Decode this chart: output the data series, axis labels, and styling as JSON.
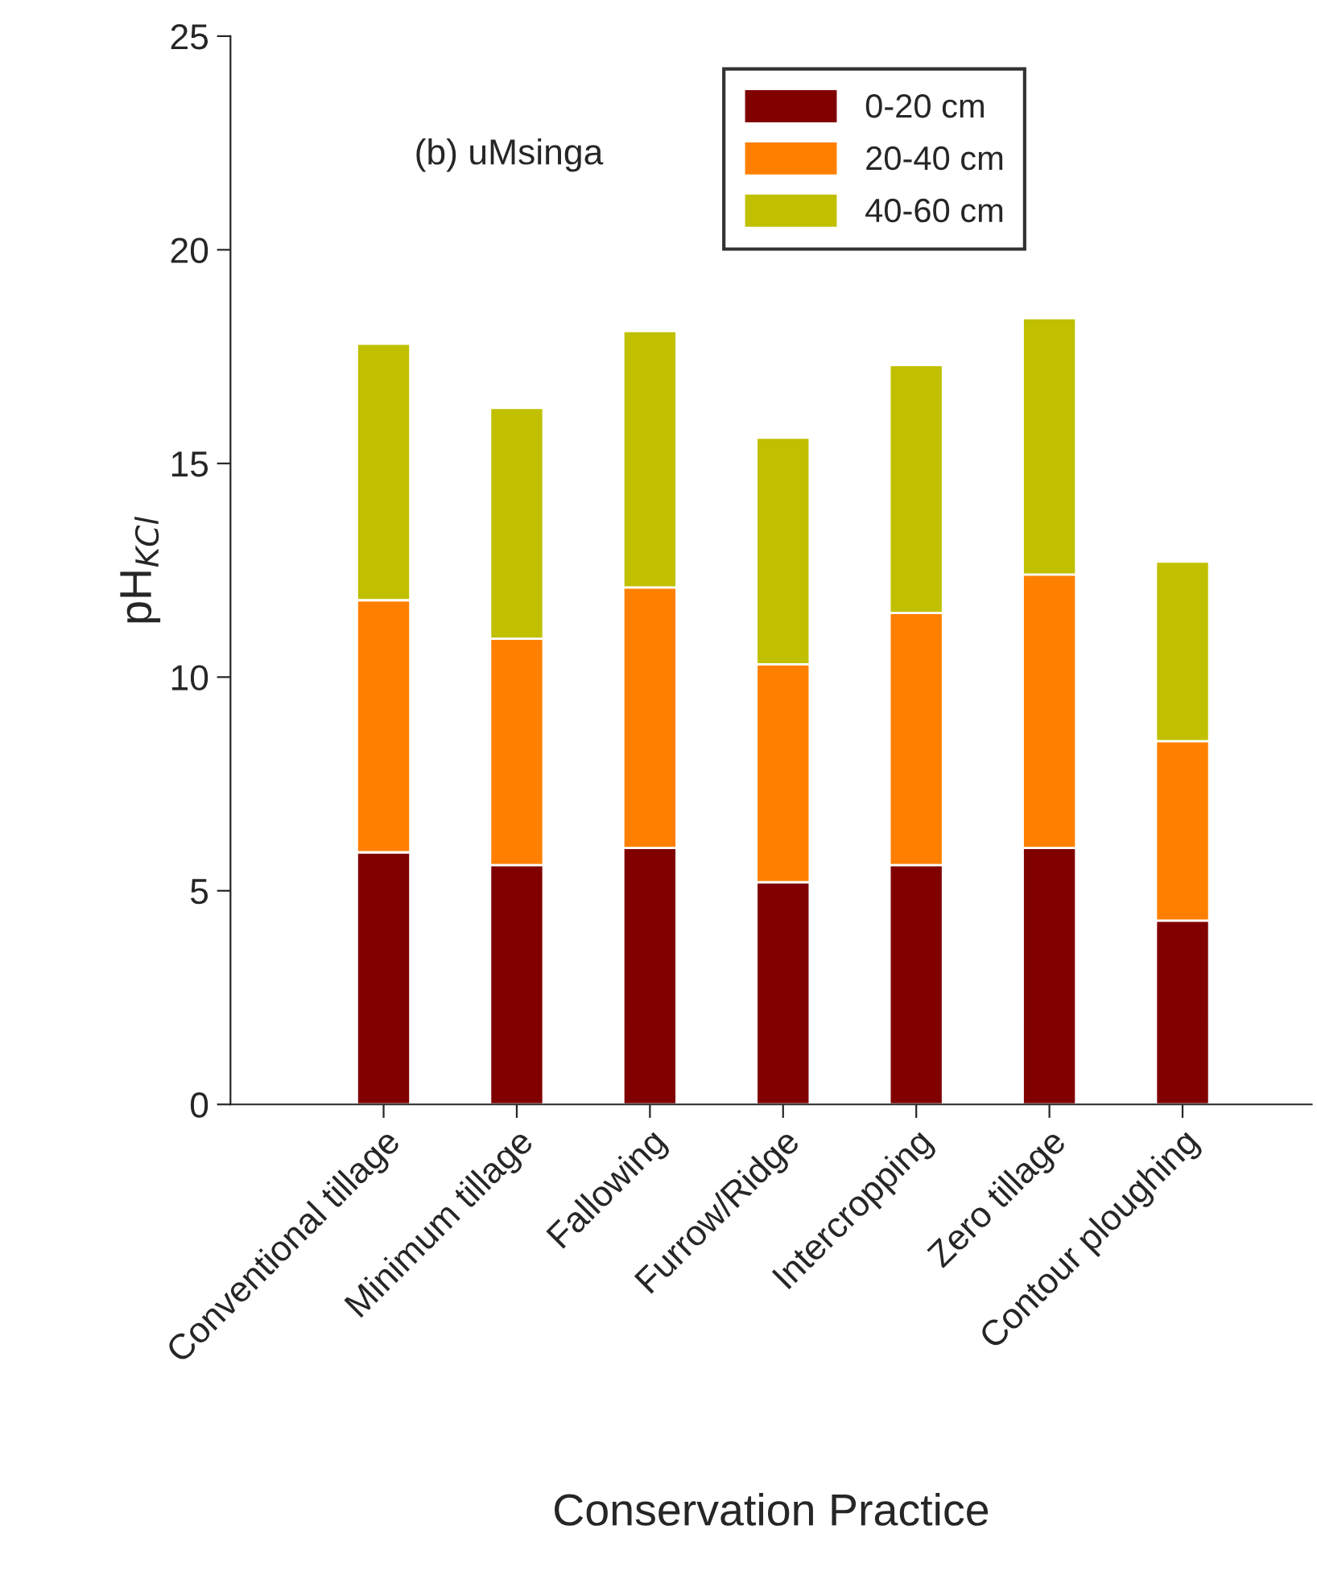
{
  "chart_data": {
    "type": "bar",
    "stacked": true,
    "xlabel": "Conservation Practice",
    "ylabel": "pH$_{KCl}$",
    "categories": [
      "Conventional tillage",
      "Minimum tillage",
      "Fallowing",
      "Furrow/Ridge",
      "Intercropping",
      "Zero tillage",
      "Contour ploughing"
    ],
    "series": [
      {
        "name": "0-20 cm",
        "color": "#800000",
        "values": [
          5.9,
          5.6,
          6.0,
          5.2,
          5.6,
          6.0,
          4.3
        ]
      },
      {
        "name": "20-40 cm",
        "color": "#ff8000",
        "values": [
          5.9,
          5.3,
          6.1,
          5.1,
          5.9,
          6.4,
          4.2
        ]
      },
      {
        "name": "40-60 cm",
        "color": "#c0c000",
        "values": [
          6.0,
          5.4,
          6.0,
          5.3,
          5.8,
          6.0,
          4.2
        ]
      }
    ],
    "ylim": [
      0,
      25
    ],
    "yticks": [
      0,
      5,
      10,
      15,
      20,
      25
    ],
    "grid": false,
    "legend": "top right",
    "annotations": [
      "(b) uMsinga"
    ]
  }
}
